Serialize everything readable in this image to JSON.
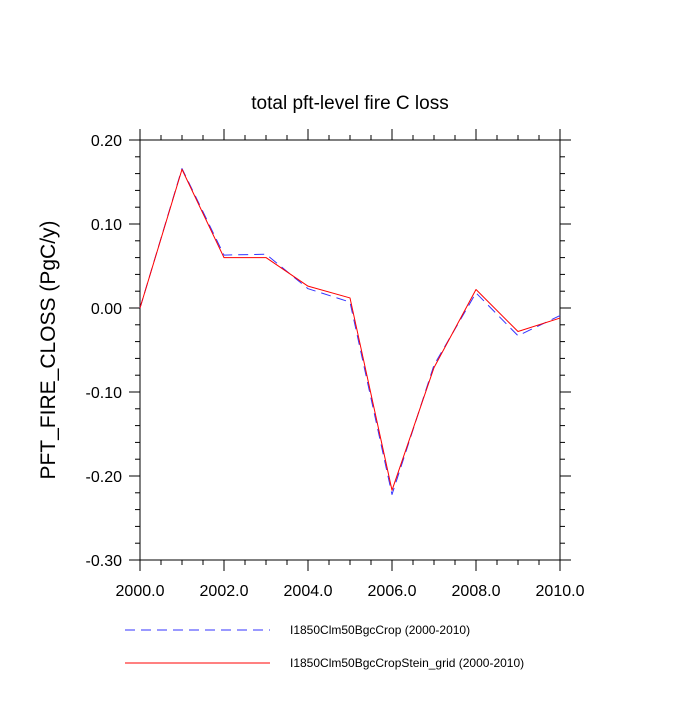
{
  "chart_data": {
    "type": "line",
    "title": "total pft-level fire C loss",
    "xlabel": "",
    "ylabel": "PFT_FIRE_CLOSS  (PgC/y)",
    "xlim": [
      2000.0,
      2010.0
    ],
    "ylim": [
      -0.3,
      0.2
    ],
    "x_ticks": [
      2000.0,
      2002.0,
      2004.0,
      2006.0,
      2008.0,
      2010.0
    ],
    "x_tick_labels": [
      "2000.0",
      "2002.0",
      "2004.0",
      "2006.0",
      "2008.0",
      "2010.0"
    ],
    "y_ticks": [
      0.2,
      0.1,
      0.0,
      -0.1,
      -0.2,
      -0.3
    ],
    "y_tick_labels": [
      "0.20",
      "0.10",
      "0.00",
      "-0.10",
      "-0.20",
      "-0.30"
    ],
    "grid": false,
    "legend_position": "bottom",
    "x": [
      2000,
      2001,
      2002,
      2003,
      2004,
      2005,
      2006,
      2007,
      2008,
      2009,
      2010
    ],
    "series": [
      {
        "name": "I1850Clm50BgcCrop (2000-2010)",
        "color": "#3333ff",
        "dash": "dashed",
        "values": [
          0.0,
          0.166,
          0.063,
          0.064,
          0.023,
          0.007,
          -0.222,
          -0.068,
          0.018,
          -0.033,
          -0.009
        ]
      },
      {
        "name": "I1850Clm50BgcCropStein_grid (2000-2010)",
        "color": "#ff0000",
        "dash": "solid",
        "values": [
          0.0,
          0.165,
          0.06,
          0.06,
          0.026,
          0.012,
          -0.217,
          -0.071,
          0.022,
          -0.028,
          -0.012
        ]
      }
    ]
  }
}
